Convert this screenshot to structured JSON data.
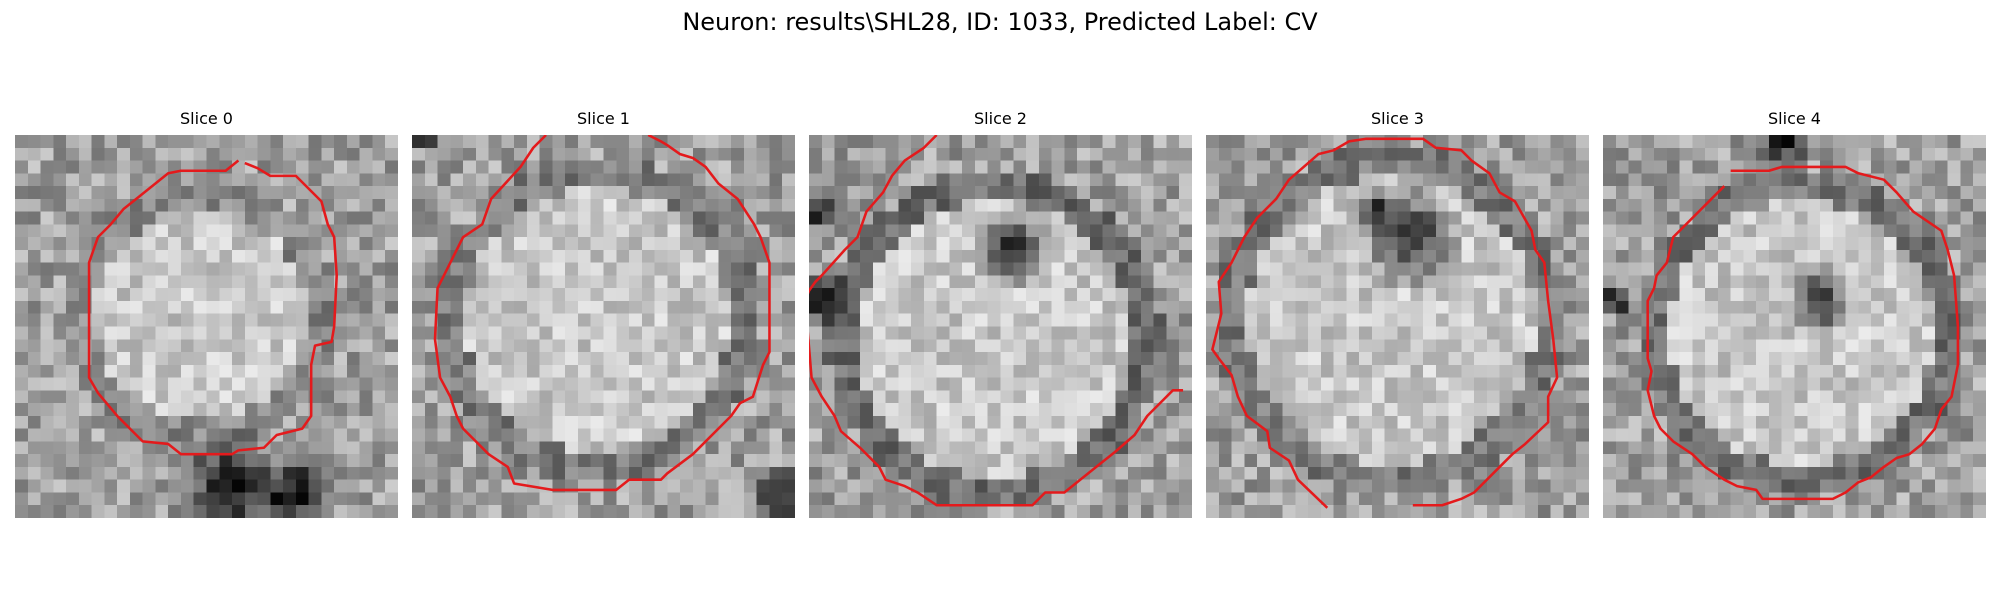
{
  "figure": {
    "title": "Neuron: results\\SHL28, ID: 1033, Predicted Label: CV"
  },
  "slices": [
    {
      "title": "Slice 0"
    },
    {
      "title": "Slice 1"
    },
    {
      "title": "Slice 2"
    },
    {
      "title": "Slice 3"
    },
    {
      "title": "Slice 4"
    }
  ],
  "colors": {
    "contour": "#e41a1c",
    "background": "#ffffff"
  }
}
